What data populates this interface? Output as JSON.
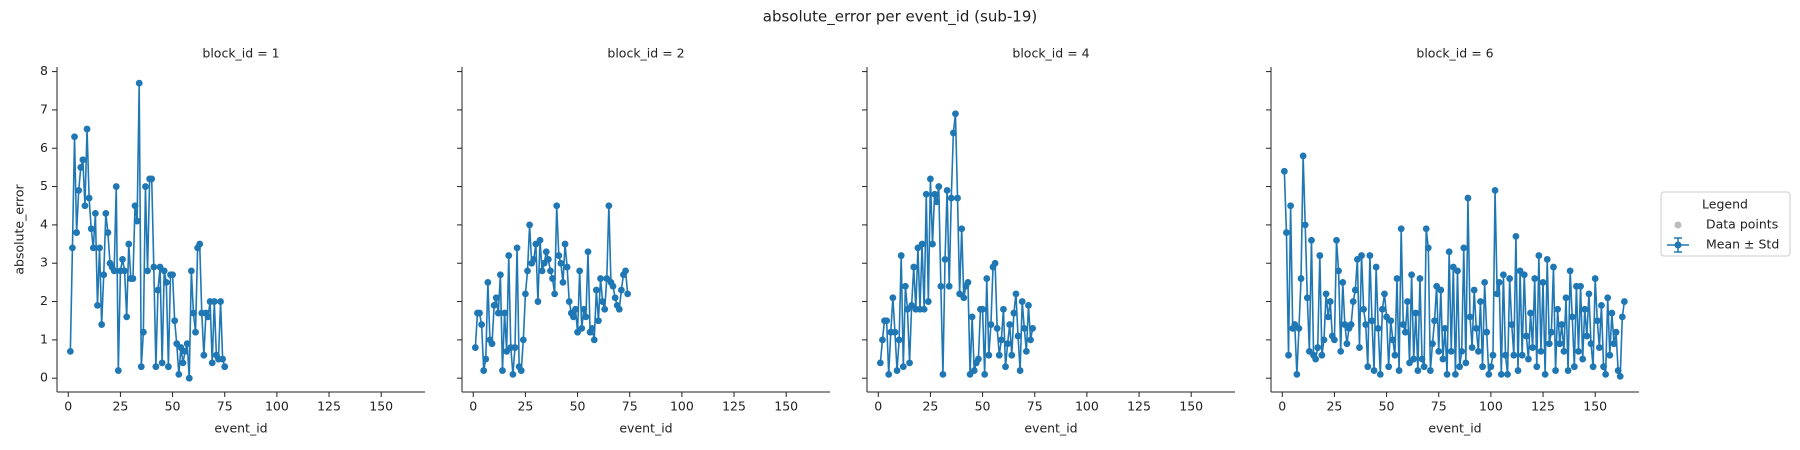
{
  "title": "absolute_error per event_id (sub-19)",
  "legend": {
    "title": "Legend",
    "entries": [
      {
        "name": "Data points",
        "color": "#bbbbbb"
      },
      {
        "name": "Mean ± Std",
        "color": "#1f77b4"
      }
    ]
  },
  "chart_data": [
    {
      "type": "line",
      "title": "block_id = 1",
      "x_label": "event_id",
      "y_label": "absolute_error",
      "xlim": [
        -5.4,
        171
      ],
      "xticks": [
        0,
        25,
        50,
        75,
        100,
        125,
        150
      ],
      "ylim": [
        -0.36,
        8.12
      ],
      "yticks": [
        0,
        1,
        2,
        3,
        4,
        5,
        6,
        7,
        8
      ],
      "x": [
        1,
        2,
        3,
        4,
        5,
        6,
        7,
        8,
        9,
        10,
        11,
        12,
        13,
        14,
        15,
        16,
        17,
        18,
        19,
        20,
        21,
        22,
        23,
        24,
        25,
        26,
        27,
        28,
        29,
        30,
        31,
        32,
        33,
        34,
        35,
        36,
        37,
        38,
        39,
        40,
        41,
        42,
        43,
        44,
        45,
        46,
        47,
        48,
        49,
        50,
        51,
        52,
        53,
        54,
        55,
        56,
        57,
        58,
        59,
        60,
        61,
        62,
        63,
        64,
        65,
        66,
        67,
        68,
        69,
        70,
        71,
        72,
        73,
        74,
        75
      ],
      "series": [
        {
          "name": "Mean ± Std",
          "color": "#1f77b4",
          "values": [
            0.7,
            3.4,
            6.3,
            3.8,
            4.9,
            5.5,
            5.7,
            4.5,
            6.5,
            4.7,
            3.9,
            3.4,
            4.3,
            1.9,
            3.4,
            1.4,
            2.7,
            4.3,
            3.8,
            3.0,
            2.9,
            2.8,
            5.0,
            0.2,
            2.8,
            3.1,
            2.8,
            1.6,
            3.5,
            2.6,
            2.6,
            4.5,
            4.1,
            7.7,
            0.3,
            1.2,
            5.0,
            2.8,
            5.2,
            5.2,
            2.9,
            0.3,
            2.3,
            2.9,
            0.4,
            2.8,
            2.5,
            0.3,
            2.7,
            2.7,
            1.5,
            0.9,
            0.1,
            0.8,
            0.4,
            0.7,
            0.9,
            0.0,
            2.8,
            1.7,
            1.2,
            3.4,
            3.5,
            1.7,
            0.6,
            1.7,
            1.6,
            2.0,
            0.4,
            2.0,
            0.6,
            0.5,
            2.0,
            0.5,
            0.3
          ]
        }
      ]
    },
    {
      "type": "line",
      "title": "block_id = 2",
      "x_label": "event_id",
      "xlim": [
        -5.4,
        171
      ],
      "xticks": [
        0,
        25,
        50,
        75,
        100,
        125,
        150
      ],
      "ylim": [
        -0.36,
        8.12
      ],
      "yticks": [
        0,
        1,
        2,
        3,
        4,
        5,
        6,
        7,
        8
      ],
      "x": [
        1,
        2,
        3,
        4,
        5,
        6,
        7,
        8,
        9,
        10,
        11,
        12,
        13,
        14,
        15,
        16,
        17,
        18,
        19,
        20,
        21,
        22,
        23,
        24,
        25,
        26,
        27,
        28,
        29,
        30,
        31,
        32,
        33,
        34,
        35,
        36,
        37,
        38,
        39,
        40,
        41,
        42,
        43,
        44,
        45,
        46,
        47,
        48,
        49,
        50,
        51,
        52,
        53,
        54,
        55,
        56,
        57,
        58,
        59,
        60,
        61,
        62,
        63,
        64,
        65,
        66,
        67,
        68,
        69,
        70,
        71,
        72,
        73,
        74
      ],
      "series": [
        {
          "name": "Mean ± Std",
          "color": "#1f77b4",
          "values": [
            0.8,
            1.7,
            1.7,
            1.4,
            0.2,
            0.5,
            2.5,
            1.0,
            0.9,
            1.9,
            2.1,
            1.7,
            2.7,
            0.2,
            1.7,
            0.7,
            3.2,
            0.8,
            0.1,
            0.8,
            3.4,
            0.3,
            0.2,
            1.0,
            2.2,
            2.8,
            4.0,
            3.0,
            3.1,
            3.5,
            2.0,
            3.6,
            2.8,
            3.0,
            3.3,
            3.1,
            2.8,
            2.6,
            2.2,
            4.5,
            3.2,
            3.0,
            2.5,
            3.5,
            2.9,
            2.0,
            1.7,
            1.6,
            1.8,
            1.2,
            2.8,
            1.3,
            1.8,
            1.6,
            3.3,
            1.2,
            1.3,
            1.0,
            2.3,
            1.5,
            2.6,
            2.0,
            1.8,
            2.6,
            4.5,
            2.5,
            2.4,
            2.1,
            1.9,
            1.8,
            2.3,
            2.7,
            2.8,
            2.2
          ]
        }
      ]
    },
    {
      "type": "line",
      "title": "block_id = 4",
      "x_label": "event_id",
      "xlim": [
        -5.4,
        171
      ],
      "xticks": [
        0,
        25,
        50,
        75,
        100,
        125,
        150
      ],
      "ylim": [
        -0.36,
        8.12
      ],
      "yticks": [
        0,
        1,
        2,
        3,
        4,
        5,
        6,
        7,
        8
      ],
      "x": [
        1,
        2,
        3,
        4,
        5,
        6,
        7,
        8,
        9,
        10,
        11,
        12,
        13,
        14,
        15,
        16,
        17,
        18,
        19,
        20,
        21,
        22,
        23,
        24,
        25,
        26,
        27,
        28,
        29,
        30,
        31,
        32,
        33,
        34,
        35,
        36,
        37,
        38,
        39,
        40,
        41,
        42,
        43,
        44,
        45,
        46,
        47,
        48,
        49,
        50,
        51,
        52,
        53,
        54,
        55,
        56,
        57,
        58,
        59,
        60,
        61,
        62,
        63,
        64,
        65,
        66,
        67,
        68,
        69,
        70,
        71,
        72,
        73,
        74
      ],
      "series": [
        {
          "name": "Mean ± Std",
          "color": "#1f77b4",
          "values": [
            0.4,
            1.0,
            1.5,
            1.5,
            0.1,
            1.2,
            2.1,
            1.2,
            0.2,
            1.0,
            3.2,
            0.3,
            2.4,
            1.8,
            0.4,
            1.9,
            2.9,
            1.8,
            3.4,
            1.8,
            3.5,
            1.8,
            4.8,
            2.0,
            5.2,
            3.5,
            4.8,
            4.6,
            5.0,
            2.4,
            0.1,
            3.1,
            4.9,
            2.4,
            4.7,
            6.4,
            6.9,
            4.7,
            2.2,
            3.9,
            2.1,
            2.4,
            2.5,
            0.1,
            1.6,
            0.2,
            0.4,
            0.5,
            1.8,
            1.8,
            0.1,
            2.6,
            0.6,
            1.4,
            2.9,
            3.0,
            1.3,
            0.6,
            1.0,
            1.8,
            0.3,
            0.9,
            1.4,
            0.6,
            1.7,
            2.2,
            1.1,
            0.2,
            2.0,
            1.3,
            0.7,
            1.9,
            1.0,
            1.3
          ]
        }
      ]
    },
    {
      "type": "line",
      "title": "block_id = 6",
      "x_label": "event_id",
      "xlim": [
        -5.4,
        171
      ],
      "xticks": [
        0,
        25,
        50,
        75,
        100,
        125,
        150
      ],
      "ylim": [
        -0.36,
        8.12
      ],
      "yticks": [
        0,
        1,
        2,
        3,
        4,
        5,
        6,
        7,
        8
      ],
      "x": [
        1,
        2,
        3,
        4,
        5,
        6,
        7,
        8,
        9,
        10,
        11,
        12,
        13,
        14,
        15,
        16,
        17,
        18,
        19,
        20,
        21,
        22,
        23,
        24,
        25,
        26,
        27,
        28,
        29,
        30,
        31,
        32,
        33,
        34,
        35,
        36,
        37,
        38,
        39,
        40,
        41,
        42,
        43,
        44,
        45,
        46,
        47,
        48,
        49,
        50,
        51,
        52,
        53,
        54,
        55,
        56,
        57,
        58,
        59,
        60,
        61,
        62,
        63,
        64,
        65,
        66,
        67,
        68,
        69,
        70,
        71,
        72,
        73,
        74,
        75,
        76,
        77,
        78,
        79,
        80,
        81,
        82,
        83,
        84,
        85,
        86,
        87,
        88,
        89,
        90,
        91,
        92,
        93,
        94,
        95,
        96,
        97,
        98,
        99,
        100,
        101,
        102,
        103,
        104,
        105,
        106,
        107,
        108,
        109,
        110,
        111,
        112,
        113,
        114,
        115,
        116,
        117,
        118,
        119,
        120,
        121,
        122,
        123,
        124,
        125,
        126,
        127,
        128,
        129,
        130,
        131,
        132,
        133,
        134,
        135,
        136,
        137,
        138,
        139,
        140,
        141,
        142,
        143,
        144,
        145,
        146,
        147,
        148,
        149,
        150,
        151,
        152,
        153,
        154,
        155,
        156,
        157,
        158,
        159,
        160,
        161,
        162,
        163,
        164
      ],
      "series": [
        {
          "name": "Mean ± Std",
          "color": "#1f77b4",
          "values": [
            5.4,
            3.8,
            0.6,
            4.5,
            1.3,
            1.4,
            0.1,
            1.3,
            2.6,
            5.8,
            4.0,
            2.1,
            0.7,
            3.6,
            0.6,
            0.5,
            0.8,
            3.2,
            0.6,
            1.0,
            2.2,
            1.6,
            2.0,
            1.1,
            1.0,
            3.6,
            2.8,
            0.7,
            2.5,
            1.4,
            0.9,
            1.3,
            1.4,
            2.0,
            2.3,
            3.1,
            0.8,
            3.2,
            1.8,
            1.4,
            0.3,
            3.2,
            1.5,
            0.2,
            2.9,
            1.3,
            0.1,
            1.8,
            2.2,
            1.6,
            0.3,
            1.5,
            1.0,
            0.6,
            2.6,
            0.2,
            3.9,
            1.4,
            1.2,
            2.0,
            0.4,
            2.7,
            0.5,
            1.7,
            0.2,
            2.6,
            0.5,
            0.3,
            3.9,
            3.4,
            0.2,
            0.9,
            1.5,
            2.4,
            0.7,
            2.3,
            0.5,
            1.3,
            0.1,
            3.3,
            0.7,
            2.9,
            0.1,
            2.8,
            0.3,
            0.7,
            3.4,
            0.4,
            4.7,
            1.6,
            0.8,
            2.3,
            1.3,
            0.7,
            2.0,
            0.3,
            2.5,
            1.2,
            0.1,
            0.3,
            0.6,
            4.9,
            2.2,
            2.5,
            0.1,
            2.7,
            0.6,
            0.1,
            2.6,
            1.4,
            0.6,
            3.7,
            0.2,
            2.8,
            0.6,
            2.7,
            1.1,
            0.5,
            1.7,
            0.8,
            2.6,
            0.3,
            3.2,
            0.7,
            2.5,
            0.1,
            3.1,
            0.9,
            1.2,
            2.9,
            0.2,
            1.8,
            0.9,
            1.4,
            0.7,
            2.1,
            0.2,
            2.8,
            1.6,
            0.3,
            2.4,
            0.7,
            2.4,
            0.5,
            1.8,
            1.1,
            2.2,
            0.9,
            0.3,
            2.6,
            1.5,
            0.8,
            1.9,
            0.3,
            0.1,
            2.1,
            0.6,
            1.7,
            0.9,
            1.2,
            0.2,
            0.05,
            1.6,
            2.0
          ]
        }
      ]
    }
  ]
}
